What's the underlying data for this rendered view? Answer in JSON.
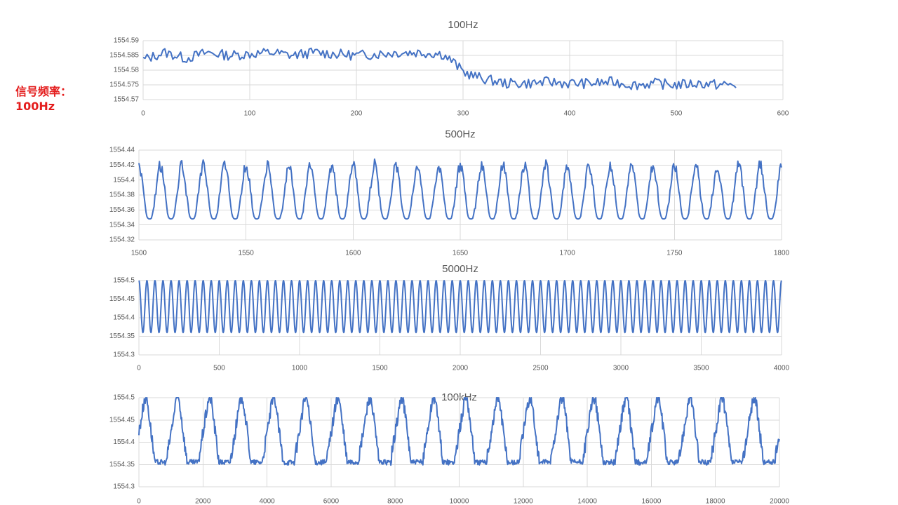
{
  "side_label": [
    "信号频率：",
    "100Hz"
  ],
  "colors": {
    "series": "#4472c4",
    "side_label": "#e41d1d",
    "grid": "#d9d9d9"
  },
  "chart_data": [
    {
      "type": "line",
      "title": "100Hz",
      "xlim": [
        0,
        600
      ],
      "x_ticks": [
        "0",
        "100",
        "200",
        "300",
        "400",
        "500",
        "600"
      ],
      "ylim": [
        1554.57,
        1554.59
      ],
      "y_ticks": [
        "1554.57",
        "1554.575",
        "1554.58",
        "1554.585",
        "1554.59"
      ],
      "grid": "vertical",
      "series": [
        {
          "x": [
            0,
            20,
            40,
            60,
            80,
            100,
            120,
            140,
            160,
            180,
            200,
            220,
            240,
            260,
            280,
            290,
            300,
            310,
            320,
            340,
            360,
            380,
            400,
            420,
            440,
            460,
            480,
            500,
            520,
            540,
            556
          ],
          "values": [
            1554.5835,
            1554.586,
            1554.584,
            1554.586,
            1554.585,
            1554.5855,
            1554.586,
            1554.585,
            1554.586,
            1554.5855,
            1554.585,
            1554.5855,
            1554.586,
            1554.586,
            1554.5855,
            1554.583,
            1554.5795,
            1554.578,
            1554.577,
            1554.5755,
            1554.5755,
            1554.576,
            1554.5755,
            1554.5755,
            1554.576,
            1554.575,
            1554.5755,
            1554.575,
            1554.5755,
            1554.575,
            1554.575
          ]
        }
      ]
    },
    {
      "type": "line",
      "title": "500Hz",
      "xlim": [
        1500,
        1800
      ],
      "x_ticks": [
        "1500",
        "1550",
        "1600",
        "1650",
        "1700",
        "1750",
        "1800"
      ],
      "ylim": [
        1554.32,
        1554.44
      ],
      "y_ticks": [
        "1554.32",
        "1554.34",
        "1554.36",
        "1554.38",
        "1554.4",
        "1554.42",
        "1554.44"
      ],
      "grid": "vertical",
      "series": [
        {
          "x_start": 1500,
          "x_end": 1800,
          "cycles": 30,
          "min": 1554.348,
          "max": 1554.428
        }
      ]
    },
    {
      "type": "line",
      "title": "5000Hz",
      "xlim": [
        0,
        4000
      ],
      "x_ticks": [
        "0",
        "500",
        "1000",
        "1500",
        "2000",
        "2500",
        "3000",
        "3500",
        "4000"
      ],
      "ylim": [
        1554.3,
        1554.5
      ],
      "y_ticks": [
        "1554.3",
        "1554.35",
        "1554.4",
        "1554.45",
        "1554.5"
      ],
      "grid": "vertical",
      "series": [
        {
          "x_start": 0,
          "x_end": 4000,
          "cycles": 80,
          "min": 1554.36,
          "max": 1554.5
        }
      ]
    },
    {
      "type": "line",
      "title": "100kHz",
      "xlim": [
        0,
        20000
      ],
      "x_ticks": [
        "0",
        "2000",
        "4000",
        "6000",
        "8000",
        "10000",
        "12000",
        "14000",
        "16000",
        "18000",
        "20000"
      ],
      "ylim": [
        1554.3,
        1554.5
      ],
      "y_ticks": [
        "1554.3",
        "1554.35",
        "1554.4",
        "1554.45",
        "1554.5"
      ],
      "grid": "vertical",
      "series": [
        {
          "x_start": 0,
          "x_end": 20000,
          "cycles": 20,
          "min": 1554.355,
          "max": 1554.5
        }
      ]
    }
  ]
}
